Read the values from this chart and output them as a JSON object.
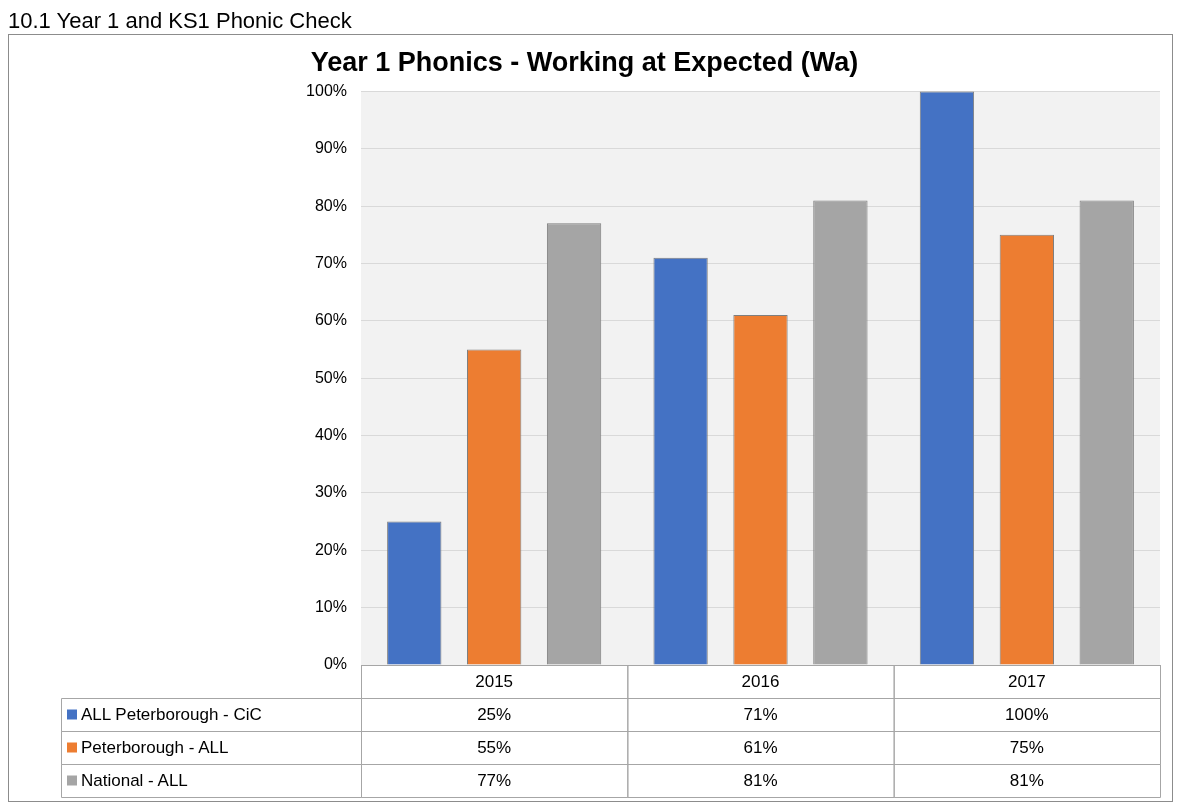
{
  "chart_data": {
    "type": "bar",
    "title": "Year 1 Phonics - Working at Expected (Wa)",
    "annotations": [
      "10.1 Year 1 and KS1 Phonic Check"
    ],
    "categories": [
      "2015",
      "2016",
      "2017"
    ],
    "series": [
      {
        "name": "ALL Peterborough - CiC",
        "color": "#4472c4",
        "values": [
          25,
          71,
          100
        ],
        "value_labels": [
          "25%",
          "71%",
          "100%"
        ]
      },
      {
        "name": "Peterborough - ALL",
        "color": "#ed7d31",
        "values": [
          55,
          61,
          75
        ],
        "value_labels": [
          "55%",
          "61%",
          "75%"
        ]
      },
      {
        "name": "National - ALL",
        "color": "#a5a5a5",
        "values": [
          77,
          81,
          81
        ],
        "value_labels": [
          "77%",
          "81%",
          "81%"
        ]
      }
    ],
    "ylim": [
      0,
      100
    ],
    "yticks": [
      {
        "value": 0,
        "label": "0%"
      },
      {
        "value": 10,
        "label": "10%"
      },
      {
        "value": 20,
        "label": "20%"
      },
      {
        "value": 30,
        "label": "30%"
      },
      {
        "value": 40,
        "label": "40%"
      },
      {
        "value": 50,
        "label": "50%"
      },
      {
        "value": 60,
        "label": "60%"
      },
      {
        "value": 70,
        "label": "70%"
      },
      {
        "value": 80,
        "label": "80%"
      },
      {
        "value": 90,
        "label": "90%"
      },
      {
        "value": 100,
        "label": "100%"
      }
    ],
    "grid": "y",
    "legend": "bottom"
  }
}
